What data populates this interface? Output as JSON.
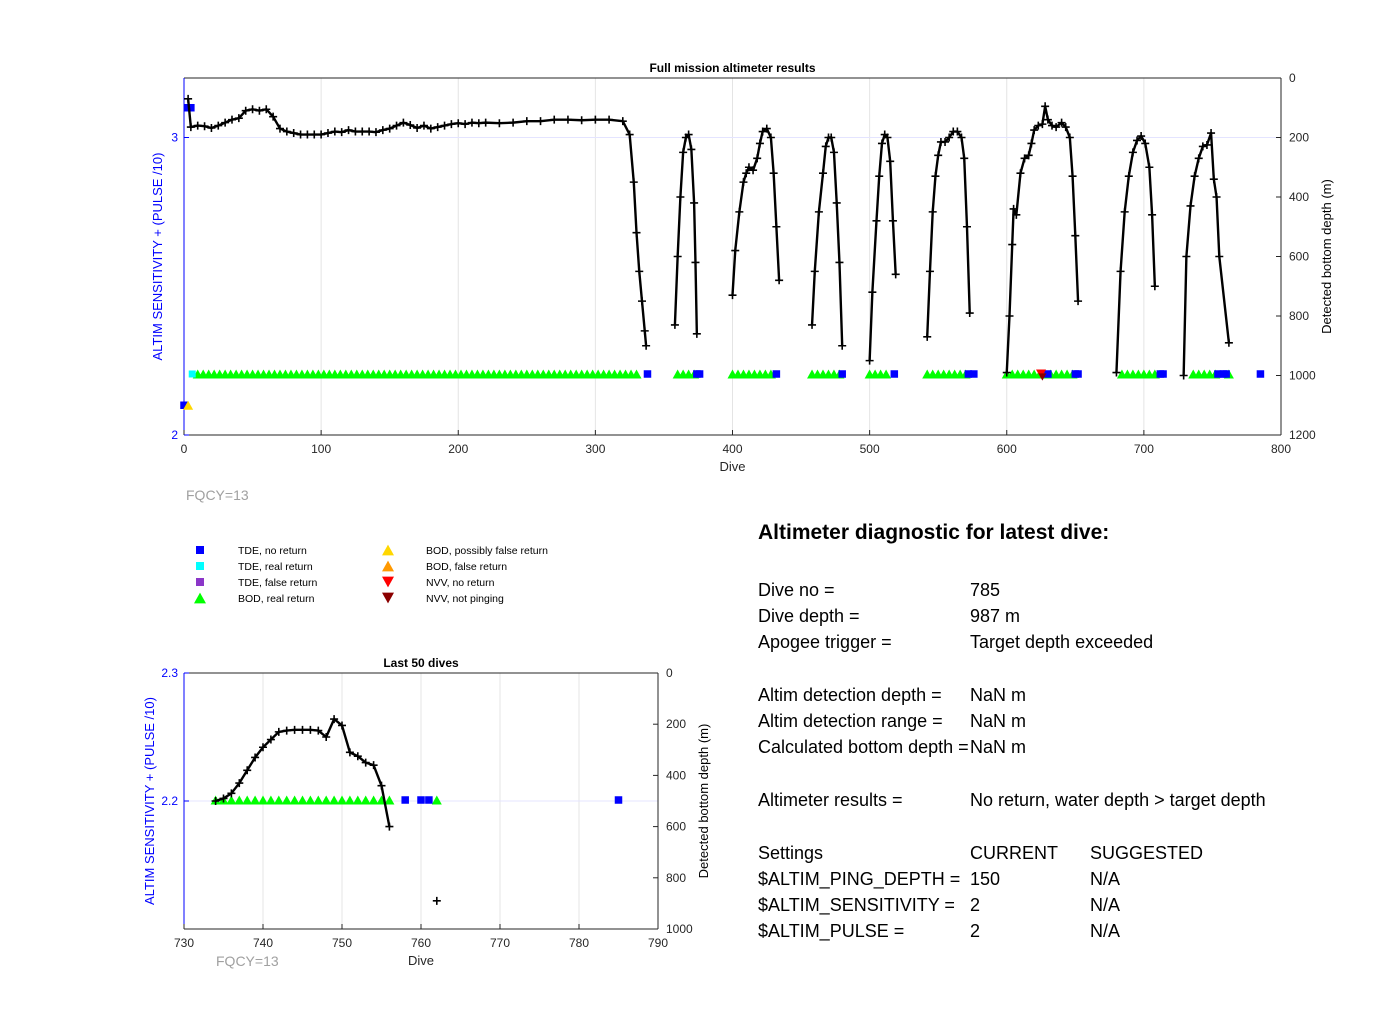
{
  "colors": {
    "axis_left": "#0000ff",
    "axis_right": "#000000",
    "tde_no_return": "#0000ff",
    "tde_real_return": "#00ffff",
    "tde_false_return": "#8b36c8",
    "bod_real_return": "#00ff00",
    "bod_possibly_false": "#ffd700",
    "bod_false": "#ff9900",
    "nvv_no_return": "#ff0000",
    "nvv_not_pinging": "#8b0000",
    "fqcy_text": "#a0a0a0"
  },
  "chart_data": [
    {
      "type": "scatter",
      "title": "Full mission altimeter results",
      "xlabel": "Dive",
      "ylabel_left": "ALTIM SENSITIVITY + (PULSE /10)",
      "ylabel_right": "Detected bottom depth (m)",
      "xlim": [
        0,
        800
      ],
      "ylim_left": [
        2,
        3.2
      ],
      "ylim_right_reversed": [
        0,
        1200
      ],
      "xticks": [
        "0",
        "100",
        "200",
        "300",
        "400",
        "500",
        "600",
        "700",
        "800"
      ],
      "xtick_values": [
        0,
        100,
        200,
        300,
        400,
        500,
        600,
        700,
        800
      ],
      "yticks_left": [
        "2",
        "3"
      ],
      "ytick_left_values": [
        2,
        3
      ],
      "yticks_right": [
        "0",
        "200",
        "400",
        "600",
        "800",
        "1000",
        "1200"
      ],
      "ytick_right_values": [
        0,
        200,
        400,
        600,
        800,
        1000,
        1200
      ],
      "annotation": "FQCY=13",
      "grid": true,
      "bottom_depth_series": [
        [
          3,
          70
        ],
        [
          5,
          165
        ],
        [
          10,
          160
        ],
        [
          15,
          162
        ],
        [
          20,
          168
        ],
        [
          25,
          160
        ],
        [
          30,
          150
        ],
        [
          35,
          140
        ],
        [
          40,
          135
        ],
        [
          45,
          110
        ],
        [
          50,
          105
        ],
        [
          55,
          110
        ],
        [
          60,
          105
        ],
        [
          65,
          130
        ],
        [
          70,
          170
        ],
        [
          75,
          180
        ],
        [
          80,
          185
        ],
        [
          85,
          190
        ],
        [
          90,
          190
        ],
        [
          95,
          190
        ],
        [
          100,
          190
        ],
        [
          105,
          185
        ],
        [
          110,
          180
        ],
        [
          115,
          182
        ],
        [
          120,
          175
        ],
        [
          125,
          180
        ],
        [
          130,
          180
        ],
        [
          135,
          180
        ],
        [
          140,
          182
        ],
        [
          145,
          175
        ],
        [
          150,
          170
        ],
        [
          155,
          160
        ],
        [
          160,
          150
        ],
        [
          165,
          158
        ],
        [
          170,
          168
        ],
        [
          175,
          160
        ],
        [
          180,
          170
        ],
        [
          185,
          165
        ],
        [
          190,
          160
        ],
        [
          195,
          155
        ],
        [
          200,
          152
        ],
        [
          205,
          155
        ],
        [
          210,
          150
        ],
        [
          215,
          152
        ],
        [
          220,
          150
        ],
        [
          230,
          152
        ],
        [
          240,
          150
        ],
        [
          250,
          145
        ],
        [
          260,
          145
        ],
        [
          270,
          140
        ],
        [
          280,
          140
        ],
        [
          290,
          142
        ],
        [
          300,
          140
        ],
        [
          310,
          140
        ],
        [
          320,
          145
        ],
        [
          325,
          190
        ],
        [
          328,
          350
        ],
        [
          330,
          520
        ],
        [
          332,
          650
        ],
        [
          334,
          750
        ],
        [
          336,
          850
        ],
        [
          337,
          900
        ],
        [
          358,
          830
        ],
        [
          360,
          600
        ],
        [
          362,
          400
        ],
        [
          364,
          250
        ],
        [
          366,
          200
        ],
        [
          368,
          190
        ],
        [
          370,
          240
        ],
        [
          372,
          420
        ],
        [
          373,
          620
        ],
        [
          374,
          860
        ],
        [
          400,
          730
        ],
        [
          402,
          580
        ],
        [
          405,
          450
        ],
        [
          408,
          350
        ],
        [
          410,
          320
        ],
        [
          412,
          300
        ],
        [
          415,
          310
        ],
        [
          418,
          270
        ],
        [
          420,
          220
        ],
        [
          422,
          180
        ],
        [
          425,
          170
        ],
        [
          428,
          200
        ],
        [
          430,
          320
        ],
        [
          432,
          500
        ],
        [
          434,
          680
        ],
        [
          458,
          830
        ],
        [
          460,
          650
        ],
        [
          463,
          450
        ],
        [
          466,
          320
        ],
        [
          468,
          230
        ],
        [
          470,
          200
        ],
        [
          472,
          200
        ],
        [
          474,
          250
        ],
        [
          476,
          420
        ],
        [
          478,
          620
        ],
        [
          480,
          900
        ],
        [
          500,
          950
        ],
        [
          502,
          720
        ],
        [
          505,
          480
        ],
        [
          507,
          330
        ],
        [
          509,
          220
        ],
        [
          511,
          190
        ],
        [
          513,
          200
        ],
        [
          515,
          280
        ],
        [
          517,
          480
        ],
        [
          519,
          660
        ],
        [
          542,
          870
        ],
        [
          544,
          650
        ],
        [
          546,
          450
        ],
        [
          548,
          330
        ],
        [
          550,
          260
        ],
        [
          552,
          215
        ],
        [
          555,
          215
        ],
        [
          558,
          200
        ],
        [
          561,
          180
        ],
        [
          564,
          180
        ],
        [
          567,
          200
        ],
        [
          569,
          270
        ],
        [
          571,
          500
        ],
        [
          573,
          790
        ],
        [
          600,
          990
        ],
        [
          602,
          800
        ],
        [
          604,
          560
        ],
        [
          605,
          440
        ],
        [
          607,
          460
        ],
        [
          610,
          320
        ],
        [
          613,
          270
        ],
        [
          616,
          260
        ],
        [
          618,
          220
        ],
        [
          620,
          175
        ],
        [
          623,
          160
        ],
        [
          626,
          155
        ],
        [
          628,
          95
        ],
        [
          630,
          140
        ],
        [
          633,
          160
        ],
        [
          636,
          165
        ],
        [
          640,
          150
        ],
        [
          643,
          165
        ],
        [
          646,
          200
        ],
        [
          648,
          330
        ],
        [
          650,
          530
        ],
        [
          652,
          750
        ],
        [
          680,
          990
        ],
        [
          683,
          650
        ],
        [
          686,
          450
        ],
        [
          689,
          330
        ],
        [
          692,
          250
        ],
        [
          695,
          210
        ],
        [
          698,
          195
        ],
        [
          701,
          220
        ],
        [
          704,
          300
        ],
        [
          706,
          460
        ],
        [
          708,
          700
        ],
        [
          729,
          1000
        ],
        [
          731,
          600
        ],
        [
          734,
          430
        ],
        [
          737,
          330
        ],
        [
          740,
          270
        ],
        [
          743,
          230
        ],
        [
          746,
          225
        ],
        [
          749,
          185
        ],
        [
          751,
          340
        ],
        [
          753,
          400
        ],
        [
          755,
          600
        ],
        [
          762,
          890
        ]
      ],
      "bod_real_return_x": [
        10,
        14,
        18,
        22,
        26,
        30,
        34,
        38,
        42,
        46,
        50,
        54,
        58,
        62,
        66,
        70,
        74,
        78,
        82,
        86,
        90,
        94,
        98,
        102,
        106,
        110,
        114,
        118,
        122,
        126,
        130,
        134,
        138,
        142,
        146,
        150,
        154,
        158,
        162,
        166,
        170,
        174,
        178,
        182,
        186,
        190,
        194,
        198,
        202,
        206,
        210,
        214,
        218,
        222,
        226,
        230,
        234,
        238,
        242,
        246,
        250,
        254,
        258,
        262,
        266,
        270,
        274,
        278,
        282,
        286,
        290,
        294,
        298,
        302,
        306,
        310,
        314,
        318,
        322,
        326,
        330,
        360,
        364,
        368,
        372,
        400,
        404,
        408,
        412,
        416,
        420,
        424,
        428,
        458,
        462,
        466,
        470,
        474,
        478,
        500,
        504,
        508,
        512,
        542,
        546,
        550,
        554,
        558,
        562,
        566,
        570,
        600,
        604,
        608,
        612,
        616,
        620,
        624,
        628,
        632,
        636,
        640,
        644,
        648,
        684,
        688,
        692,
        696,
        700,
        704,
        708,
        736,
        740,
        744,
        748,
        752,
        762
      ],
      "tde_no_return_x": [
        338,
        374,
        376,
        432,
        480,
        518,
        572,
        576,
        630,
        650,
        652,
        712,
        714,
        754,
        758,
        760,
        785
      ],
      "tde_real_return_x": [
        6
      ],
      "tde_no_return_left": [
        [
          3,
          3.1
        ],
        [
          5,
          3.1
        ],
        [
          0,
          2.1
        ]
      ],
      "bod_possibly_false_left": [
        [
          3,
          2.1
        ]
      ],
      "nvv_no_return_x": [
        625
      ],
      "nvv_not_pinging_x": [
        626
      ]
    },
    {
      "type": "scatter",
      "title": "Last 50 dives",
      "xlabel": "Dive",
      "ylabel_left": "ALTIM SENSITIVITY + (PULSE /10)",
      "ylabel_right": "Detected bottom depth (m)",
      "xlim": [
        730,
        790
      ],
      "ylim_left": [
        2.1,
        2.3
      ],
      "ylim_right_reversed": [
        0,
        1000
      ],
      "xticks": [
        "730",
        "740",
        "750",
        "760",
        "770",
        "780",
        "790"
      ],
      "xtick_values": [
        730,
        740,
        750,
        760,
        770,
        780,
        790
      ],
      "yticks_left": [
        "2.2",
        "2.3"
      ],
      "ytick_left_values": [
        2.2,
        2.3
      ],
      "yticks_right": [
        "0",
        "200",
        "400",
        "600",
        "800",
        "1000"
      ],
      "ytick_right_values": [
        0,
        200,
        400,
        600,
        800,
        1000
      ],
      "annotation": "FQCY=13",
      "grid": true,
      "bottom_depth_series": [
        [
          734,
          500
        ],
        [
          735,
          490
        ],
        [
          736,
          470
        ],
        [
          737,
          430
        ],
        [
          738,
          380
        ],
        [
          739,
          330
        ],
        [
          740,
          290
        ],
        [
          741,
          260
        ],
        [
          742,
          230
        ],
        [
          743,
          225
        ],
        [
          744,
          222
        ],
        [
          745,
          222
        ],
        [
          746,
          222
        ],
        [
          747,
          225
        ],
        [
          748,
          250
        ],
        [
          749,
          180
        ],
        [
          750,
          205
        ],
        [
          751,
          310
        ],
        [
          752,
          325
        ],
        [
          753,
          350
        ],
        [
          754,
          360
        ],
        [
          755,
          440
        ],
        [
          756,
          600
        ]
      ],
      "isolated_depth": [
        [
          762,
          890
        ]
      ],
      "bod_real_return_x": [
        734,
        735,
        736,
        737,
        738,
        739,
        740,
        741,
        742,
        743,
        744,
        745,
        746,
        747,
        748,
        749,
        750,
        751,
        752,
        753,
        754,
        755,
        756,
        762
      ],
      "tde_no_return_x": [
        758,
        760,
        761,
        785
      ]
    }
  ],
  "legend": {
    "items": [
      {
        "label": "TDE, no return",
        "marker": "square",
        "color_key": "tde_no_return"
      },
      {
        "label": "TDE, real return",
        "marker": "square",
        "color_key": "tde_real_return"
      },
      {
        "label": "TDE, false return",
        "marker": "square",
        "color_key": "tde_false_return"
      },
      {
        "label": "BOD, real return",
        "marker": "triangle-up",
        "color_key": "bod_real_return"
      },
      {
        "label": "BOD, possibly false return",
        "marker": "triangle-up",
        "color_key": "bod_possibly_false"
      },
      {
        "label": "BOD, false return",
        "marker": "triangle-up",
        "color_key": "bod_false"
      },
      {
        "label": "NVV, no return",
        "marker": "triangle-down",
        "color_key": "nvv_no_return"
      },
      {
        "label": "NVV, not pinging",
        "marker": "triangle-down",
        "color_key": "nvv_not_pinging"
      }
    ]
  },
  "diagnostic": {
    "title": "Altimeter diagnostic for latest dive:",
    "dive_no_label": "Dive no =",
    "dive_no_value": "785",
    "dive_depth_label": "Dive depth =",
    "dive_depth_value": "987 m",
    "apogee_label": "Apogee trigger =",
    "apogee_value": "Target depth exceeded",
    "altim_det_depth_label": "Altim detection depth =",
    "altim_det_depth_value": "NaN m",
    "altim_det_range_label": "Altim detection range =",
    "altim_det_range_value": "NaN m",
    "calc_bottom_label": "Calculated bottom depth =",
    "calc_bottom_value": "NaN m",
    "results_label": "Altimeter results =",
    "results_value": "No return, water depth > target depth",
    "settings_label": "Settings",
    "current_label": "CURRENT",
    "suggested_label": "SUGGESTED",
    "ping_depth_label": "$ALTIM_PING_DEPTH =",
    "ping_depth_current": "150",
    "ping_depth_suggested": "N/A",
    "sensitivity_label": "$ALTIM_SENSITIVITY =",
    "sensitivity_current": "2",
    "sensitivity_suggested": "N/A",
    "pulse_label": "$ALTIM_PULSE =",
    "pulse_current": "2",
    "pulse_suggested": "N/A"
  }
}
